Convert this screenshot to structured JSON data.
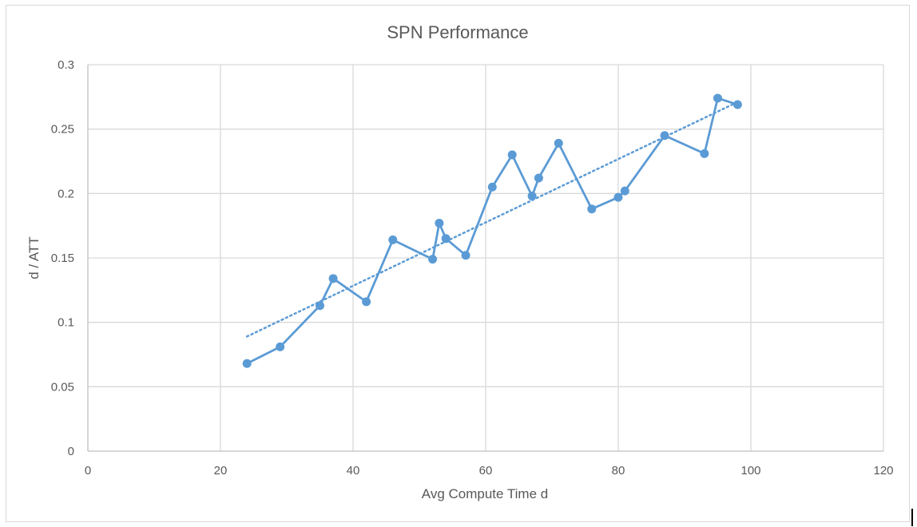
{
  "chart_data": {
    "type": "scatter",
    "title": "SPN Performance",
    "xlabel": "Avg Compute Time d",
    "ylabel": "d / ATT",
    "xlim": [
      0,
      120
    ],
    "ylim": [
      0,
      0.3
    ],
    "x_ticks": [
      0,
      20,
      40,
      60,
      80,
      100,
      120
    ],
    "y_ticks": [
      0,
      0.05,
      0.1,
      0.15,
      0.2,
      0.25,
      0.3
    ],
    "x_tick_labels": [
      "0",
      "20",
      "40",
      "60",
      "80",
      "100",
      "120"
    ],
    "y_tick_labels": [
      "0",
      "0.05",
      "0.1",
      "0.15",
      "0.2",
      "0.25",
      "0.3"
    ],
    "grid": true,
    "legend": "none",
    "series": [
      {
        "style": "line-with-markers",
        "color": "#5b9bd5",
        "x": [
          24,
          29,
          35,
          37,
          42,
          46,
          52,
          53,
          54,
          57,
          61,
          64,
          67,
          68,
          71,
          76,
          80,
          81,
          87,
          93,
          95,
          98
        ],
        "y": [
          0.068,
          0.081,
          0.113,
          0.134,
          0.116,
          0.164,
          0.149,
          0.177,
          0.165,
          0.152,
          0.205,
          0.23,
          0.198,
          0.212,
          0.239,
          0.188,
          0.197,
          0.202,
          0.245,
          0.231,
          0.274,
          0.269
        ]
      }
    ],
    "trendline": {
      "type": "linear",
      "style": "dotted",
      "color": "#5b9bd5",
      "x": [
        24,
        98
      ],
      "y": [
        0.089,
        0.271
      ]
    }
  }
}
